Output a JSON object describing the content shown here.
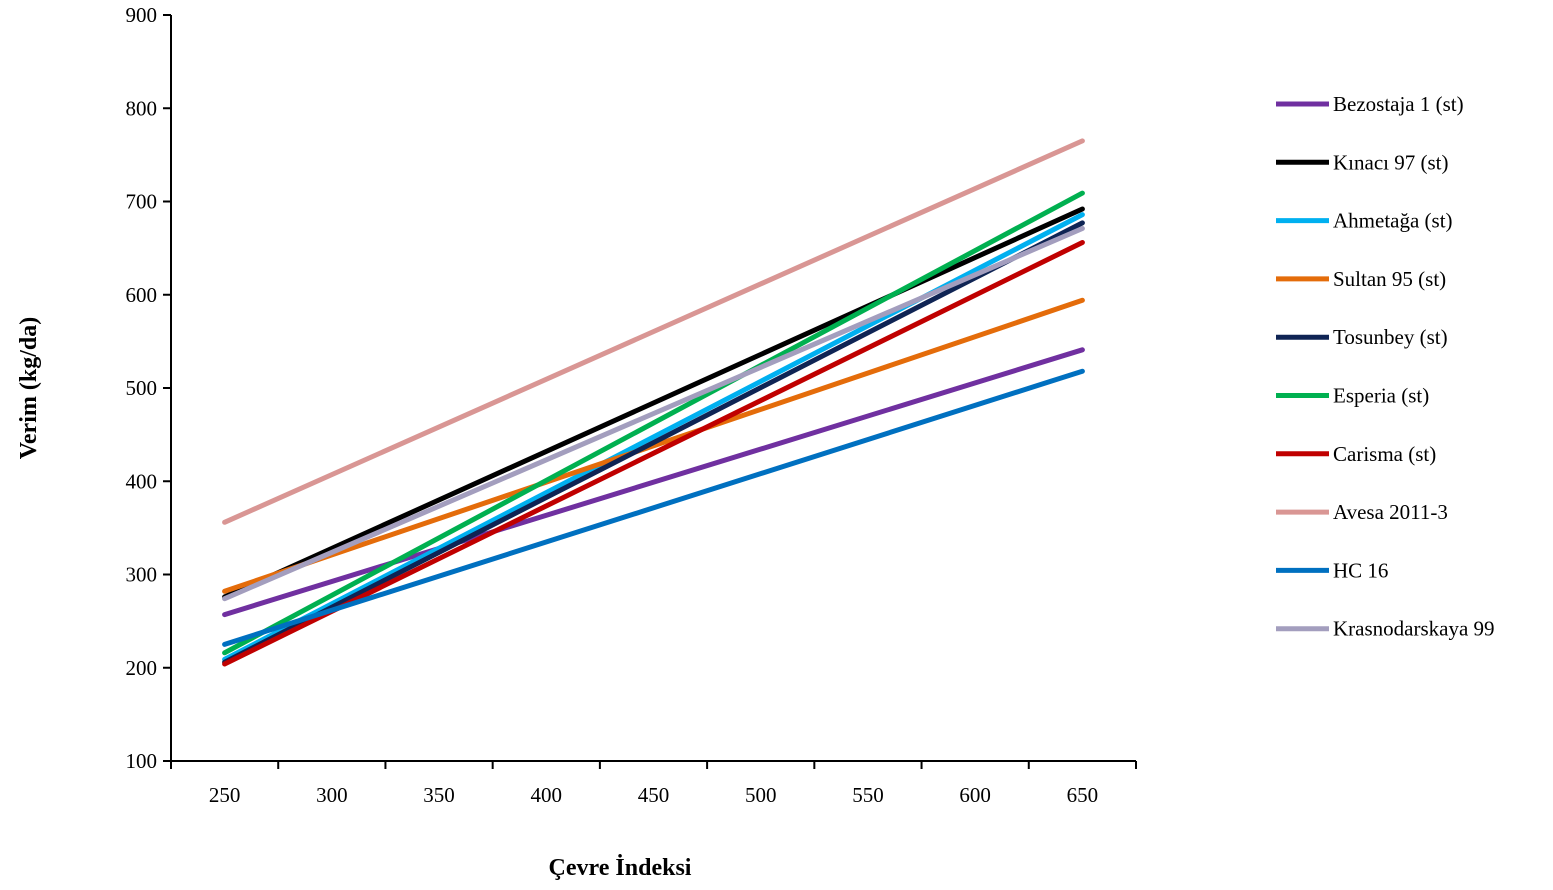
{
  "chart_data": {
    "type": "line",
    "title": "",
    "xlabel": "Çevre İndeksi",
    "ylabel": "Verim (kg/da)",
    "xlim": [
      225,
      675
    ],
    "ylim": [
      100,
      900
    ],
    "x_ticks": [
      250,
      300,
      350,
      400,
      450,
      500,
      550,
      600,
      650
    ],
    "y_ticks": [
      100,
      200,
      300,
      400,
      500,
      600,
      700,
      800,
      900
    ],
    "grid": false,
    "legend_position": "right",
    "x": [
      250,
      650
    ],
    "series": [
      {
        "name": "Bezostaja 1 (st)",
        "color": "#7030A0",
        "values": [
          257,
          541
        ]
      },
      {
        "name": "Kınacı 97 (st)",
        "color": "#000000",
        "values": [
          276,
          692
        ]
      },
      {
        "name": "Ahmetağa (st)",
        "color": "#00B0F0",
        "values": [
          209,
          686
        ]
      },
      {
        "name": "Sultan 95 (st)",
        "color": "#E46C0A",
        "values": [
          282,
          594
        ]
      },
      {
        "name": "Tosunbey (st)",
        "color": "#0F2454",
        "values": [
          206,
          677
        ]
      },
      {
        "name": "Esperia (st)",
        "color": "#00B050",
        "values": [
          216,
          709
        ]
      },
      {
        "name": "Carisma (st)",
        "color": "#C00000",
        "values": [
          204,
          656
        ]
      },
      {
        "name": "Avesa 2011-3",
        "color": "#D99694",
        "values": [
          356,
          765
        ]
      },
      {
        "name": "HC 16",
        "color": "#0070C0",
        "values": [
          225,
          518
        ]
      },
      {
        "name": "Krasnodarskaya 99",
        "color": "#A39EBE",
        "values": [
          274,
          671
        ]
      }
    ]
  }
}
